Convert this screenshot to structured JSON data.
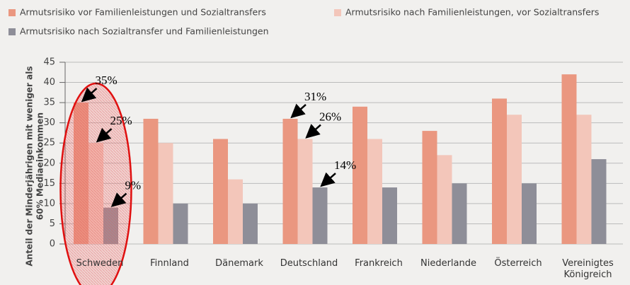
{
  "chart_data": {
    "type": "bar",
    "y_label_lines": [
      "Anteil der Minderjährigen mit weniger als",
      "60% Mediaeinkommen"
    ],
    "categories": [
      "Schweden",
      "Finnland",
      "Dänemark",
      "Deutschland",
      "Frankreich",
      "Niederlande",
      "Österreich",
      "Vereinigtes Königreich"
    ],
    "series": [
      {
        "name": "Armutsrisiko vor Familienleistungen und Sozialtransfers",
        "color": "#ea9780",
        "values": [
          35,
          31,
          26,
          31,
          34,
          28,
          36,
          42
        ],
        "value_labels": [
          "35%",
          null,
          null,
          "31%",
          null,
          null,
          null,
          null
        ]
      },
      {
        "name": "Armutsrisiko nach Familienleistungen, vor Sozialtransfers",
        "color": "#f3c6ba",
        "values": [
          25,
          25,
          16,
          26,
          26,
          22,
          32,
          32
        ],
        "value_labels": [
          "25%",
          null,
          null,
          "26%",
          null,
          null,
          null,
          null
        ]
      },
      {
        "name": "Armutsrisiko nach Sozialtransfer und Familienleistungen",
        "color": "#8e8e98",
        "values": [
          9,
          10,
          10,
          14,
          14,
          15,
          15,
          21
        ],
        "value_labels": [
          "9%",
          null,
          null,
          "14%",
          null,
          null,
          null,
          null
        ]
      }
    ],
    "ylim": [
      0,
      45
    ],
    "yticks": [
      0,
      5,
      10,
      15,
      20,
      25,
      30,
      35,
      40,
      45
    ],
    "grid": true
  }
}
